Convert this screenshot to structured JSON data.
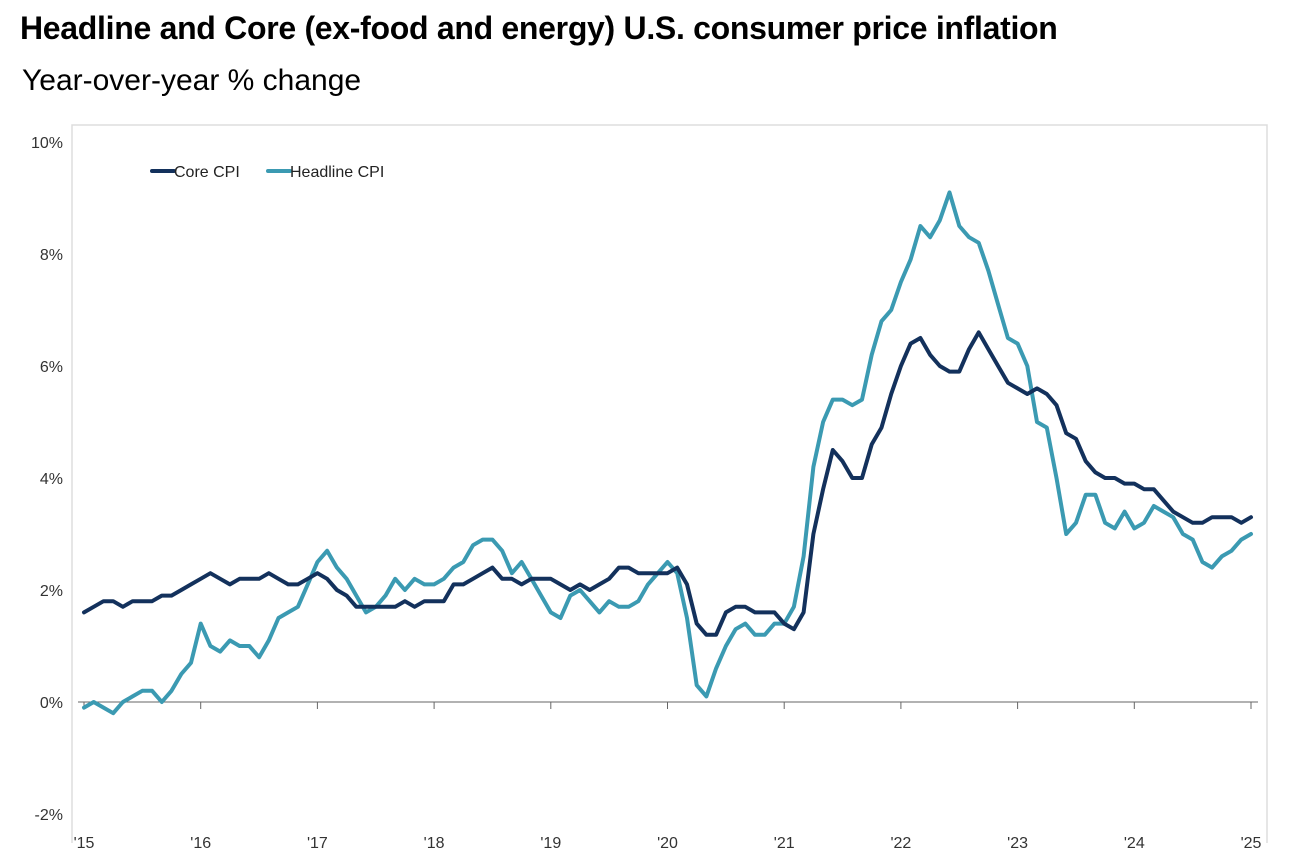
{
  "chart_data": {
    "type": "line",
    "title": "Headline and Core (ex-food and energy) U.S. consumer price inflation",
    "subtitle": "Year-over-year % change",
    "xlabel": "",
    "ylabel": "",
    "x_start": "2015-01",
    "x_end": "2025-01",
    "x_ticks": [
      "'15",
      "'16",
      "'17",
      "'18",
      "'19",
      "'20",
      "'21",
      "'22",
      "'23",
      "'24",
      "'25"
    ],
    "y_ticks": [
      "-2%",
      "0%",
      "2%",
      "4%",
      "6%",
      "8%",
      "10%"
    ],
    "ylim": [
      -2,
      10
    ],
    "grid": false,
    "legend_position": "top-left",
    "colors": {
      "core": "#13315c",
      "headline": "#3b9ab2",
      "axis": "#666666",
      "frame": "#dddddd"
    },
    "series": [
      {
        "name": "Core CPI",
        "values": [
          1.6,
          1.7,
          1.8,
          1.8,
          1.7,
          1.8,
          1.8,
          1.8,
          1.9,
          1.9,
          2.0,
          2.1,
          2.2,
          2.3,
          2.2,
          2.1,
          2.2,
          2.2,
          2.2,
          2.3,
          2.2,
          2.1,
          2.1,
          2.2,
          2.3,
          2.2,
          2.0,
          1.9,
          1.7,
          1.7,
          1.7,
          1.7,
          1.7,
          1.8,
          1.7,
          1.8,
          1.8,
          1.8,
          2.1,
          2.1,
          2.2,
          2.3,
          2.4,
          2.2,
          2.2,
          2.1,
          2.2,
          2.2,
          2.2,
          2.1,
          2.0,
          2.1,
          2.0,
          2.1,
          2.2,
          2.4,
          2.4,
          2.3,
          2.3,
          2.3,
          2.3,
          2.4,
          2.1,
          1.4,
          1.2,
          1.2,
          1.6,
          1.7,
          1.7,
          1.6,
          1.6,
          1.6,
          1.4,
          1.3,
          1.6,
          3.0,
          3.8,
          4.5,
          4.3,
          4.0,
          4.0,
          4.6,
          4.9,
          5.5,
          6.0,
          6.4,
          6.5,
          6.2,
          6.0,
          5.9,
          5.9,
          6.3,
          6.6,
          6.3,
          6.0,
          5.7,
          5.6,
          5.5,
          5.6,
          5.5,
          5.3,
          4.8,
          4.7,
          4.3,
          4.1,
          4.0,
          4.0,
          3.9,
          3.9,
          3.8,
          3.8,
          3.6,
          3.4,
          3.3,
          3.2,
          3.2,
          3.3,
          3.3,
          3.3,
          3.2,
          3.3
        ]
      },
      {
        "name": "Headline CPI",
        "values": [
          -0.1,
          0.0,
          -0.1,
          -0.2,
          0.0,
          0.1,
          0.2,
          0.2,
          0.0,
          0.2,
          0.5,
          0.7,
          1.4,
          1.0,
          0.9,
          1.1,
          1.0,
          1.0,
          0.8,
          1.1,
          1.5,
          1.6,
          1.7,
          2.1,
          2.5,
          2.7,
          2.4,
          2.2,
          1.9,
          1.6,
          1.7,
          1.9,
          2.2,
          2.0,
          2.2,
          2.1,
          2.1,
          2.2,
          2.4,
          2.5,
          2.8,
          2.9,
          2.9,
          2.7,
          2.3,
          2.5,
          2.2,
          1.9,
          1.6,
          1.5,
          1.9,
          2.0,
          1.8,
          1.6,
          1.8,
          1.7,
          1.7,
          1.8,
          2.1,
          2.3,
          2.5,
          2.3,
          1.5,
          0.3,
          0.1,
          0.6,
          1.0,
          1.3,
          1.4,
          1.2,
          1.2,
          1.4,
          1.4,
          1.7,
          2.6,
          4.2,
          5.0,
          5.4,
          5.4,
          5.3,
          5.4,
          6.2,
          6.8,
          7.0,
          7.5,
          7.9,
          8.5,
          8.3,
          8.6,
          9.1,
          8.5,
          8.3,
          8.2,
          7.7,
          7.1,
          6.5,
          6.4,
          6.0,
          5.0,
          4.9,
          4.0,
          3.0,
          3.2,
          3.7,
          3.7,
          3.2,
          3.1,
          3.4,
          3.1,
          3.2,
          3.5,
          3.4,
          3.3,
          3.0,
          2.9,
          2.5,
          2.4,
          2.6,
          2.7,
          2.9,
          3.0
        ]
      }
    ]
  }
}
